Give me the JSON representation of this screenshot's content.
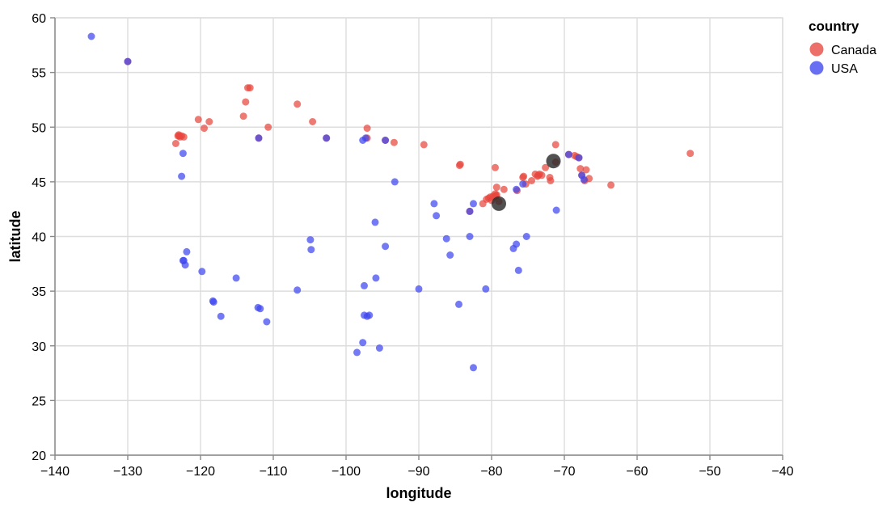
{
  "chart_data": {
    "type": "scatter",
    "xlabel": "longitude",
    "ylabel": "latitude",
    "xlim": [
      -140,
      -40
    ],
    "ylim": [
      20,
      60
    ],
    "x_ticks": [
      -140,
      -130,
      -120,
      -110,
      -100,
      -90,
      -80,
      -70,
      -60,
      -50,
      -40
    ],
    "y_ticks": [
      20,
      25,
      30,
      35,
      40,
      45,
      50,
      55,
      60
    ],
    "grid": true,
    "legend": {
      "title": "country",
      "position": "top-right"
    },
    "series": [
      {
        "name": "Canada",
        "color": "#e8473f",
        "points": [
          [
            -123.4,
            48.5
          ],
          [
            -123.1,
            49.2
          ],
          [
            -123.0,
            49.3
          ],
          [
            -122.9,
            49.2
          ],
          [
            -122.8,
            49.1
          ],
          [
            -122.6,
            49.2
          ],
          [
            -122.3,
            49.1
          ],
          [
            -120.3,
            50.7
          ],
          [
            -119.5,
            49.9
          ],
          [
            -118.8,
            50.5
          ],
          [
            -114.1,
            51.0
          ],
          [
            -113.8,
            52.3
          ],
          [
            -113.5,
            53.6
          ],
          [
            -113.2,
            53.6
          ],
          [
            -110.7,
            50.0
          ],
          [
            -106.7,
            52.1
          ],
          [
            -104.6,
            50.5
          ],
          [
            -102.7,
            49.0
          ],
          [
            -97.1,
            49.9
          ],
          [
            -97.1,
            49.0
          ],
          [
            -93.4,
            48.6
          ],
          [
            -89.3,
            48.4
          ],
          [
            -84.4,
            46.5
          ],
          [
            -84.3,
            46.6
          ],
          [
            -83.0,
            42.3
          ],
          [
            -81.2,
            43.0
          ],
          [
            -80.7,
            43.4
          ],
          [
            -80.4,
            43.5
          ],
          [
            -80.2,
            43.6
          ],
          [
            -80.0,
            43.3
          ],
          [
            -79.8,
            43.7
          ],
          [
            -79.6,
            43.6
          ],
          [
            -79.5,
            43.9
          ],
          [
            -79.4,
            43.7
          ],
          [
            -79.3,
            43.8
          ],
          [
            -79.0,
            43.2
          ],
          [
            -79.3,
            44.5
          ],
          [
            -79.5,
            46.3
          ],
          [
            -78.3,
            44.3
          ],
          [
            -76.5,
            44.2
          ],
          [
            -75.7,
            45.4
          ],
          [
            -75.6,
            45.5
          ],
          [
            -75.3,
            44.8
          ],
          [
            -74.5,
            45.1
          ],
          [
            -74.0,
            45.7
          ],
          [
            -73.7,
            45.5
          ],
          [
            -73.6,
            45.6
          ],
          [
            -73.4,
            45.7
          ],
          [
            -73.1,
            45.6
          ],
          [
            -72.6,
            46.3
          ],
          [
            -72.0,
            45.4
          ],
          [
            -71.9,
            45.1
          ],
          [
            -71.2,
            46.8
          ],
          [
            -71.2,
            48.4
          ],
          [
            -69.4,
            47.5
          ],
          [
            -68.6,
            47.4
          ],
          [
            -68.3,
            47.3
          ],
          [
            -68.0,
            47.2
          ],
          [
            -67.8,
            46.2
          ],
          [
            -67.6,
            45.6
          ],
          [
            -67.2,
            45.1
          ],
          [
            -67.0,
            46.1
          ],
          [
            -66.6,
            45.3
          ],
          [
            -63.6,
            44.7
          ],
          [
            -52.7,
            47.6
          ],
          [
            -130.0,
            56.0
          ],
          [
            -112.0,
            49.0
          ],
          [
            -94.6,
            48.8
          ]
        ]
      },
      {
        "name": "USA",
        "color": "#3f46ee",
        "points": [
          [
            -135.0,
            58.3
          ],
          [
            -130.0,
            56.0
          ],
          [
            -122.4,
            47.6
          ],
          [
            -122.6,
            45.5
          ],
          [
            -122.4,
            37.8
          ],
          [
            -122.1,
            37.4
          ],
          [
            -121.9,
            38.6
          ],
          [
            -122.3,
            37.8
          ],
          [
            -119.8,
            36.8
          ],
          [
            -118.2,
            34.0
          ],
          [
            -118.3,
            34.1
          ],
          [
            -117.2,
            32.7
          ],
          [
            -115.1,
            36.2
          ],
          [
            -112.1,
            33.5
          ],
          [
            -111.8,
            33.4
          ],
          [
            -112.0,
            49.0
          ],
          [
            -110.9,
            32.2
          ],
          [
            -106.7,
            35.1
          ],
          [
            -104.9,
            39.7
          ],
          [
            -104.8,
            38.8
          ],
          [
            -102.7,
            49.0
          ],
          [
            -97.7,
            48.8
          ],
          [
            -97.3,
            49.0
          ],
          [
            -97.5,
            35.5
          ],
          [
            -97.5,
            32.8
          ],
          [
            -97.1,
            32.7
          ],
          [
            -96.8,
            32.8
          ],
          [
            -96.0,
            41.3
          ],
          [
            -95.9,
            36.2
          ],
          [
            -95.4,
            29.8
          ],
          [
            -97.7,
            30.3
          ],
          [
            -98.5,
            29.4
          ],
          [
            -94.6,
            39.1
          ],
          [
            -94.6,
            48.8
          ],
          [
            -93.3,
            45.0
          ],
          [
            -90.0,
            35.2
          ],
          [
            -87.9,
            43.0
          ],
          [
            -87.6,
            41.9
          ],
          [
            -86.2,
            39.8
          ],
          [
            -85.7,
            38.3
          ],
          [
            -84.5,
            33.8
          ],
          [
            -83.0,
            40.0
          ],
          [
            -82.5,
            43.0
          ],
          [
            -82.5,
            28.0
          ],
          [
            -80.8,
            35.2
          ],
          [
            -77.0,
            38.9
          ],
          [
            -76.6,
            39.3
          ],
          [
            -76.3,
            36.9
          ],
          [
            -75.2,
            40.0
          ],
          [
            -76.6,
            44.3
          ],
          [
            -71.1,
            42.4
          ],
          [
            -75.7,
            44.8
          ],
          [
            -69.4,
            47.5
          ],
          [
            -68.0,
            47.2
          ],
          [
            -67.6,
            45.6
          ],
          [
            -67.3,
            45.2
          ],
          [
            -83.0,
            42.3
          ]
        ]
      }
    ],
    "highlighted": {
      "color": "#2b2b2b",
      "points": [
        [
          -79.0,
          43.0
        ],
        [
          -71.5,
          46.9
        ]
      ]
    }
  }
}
